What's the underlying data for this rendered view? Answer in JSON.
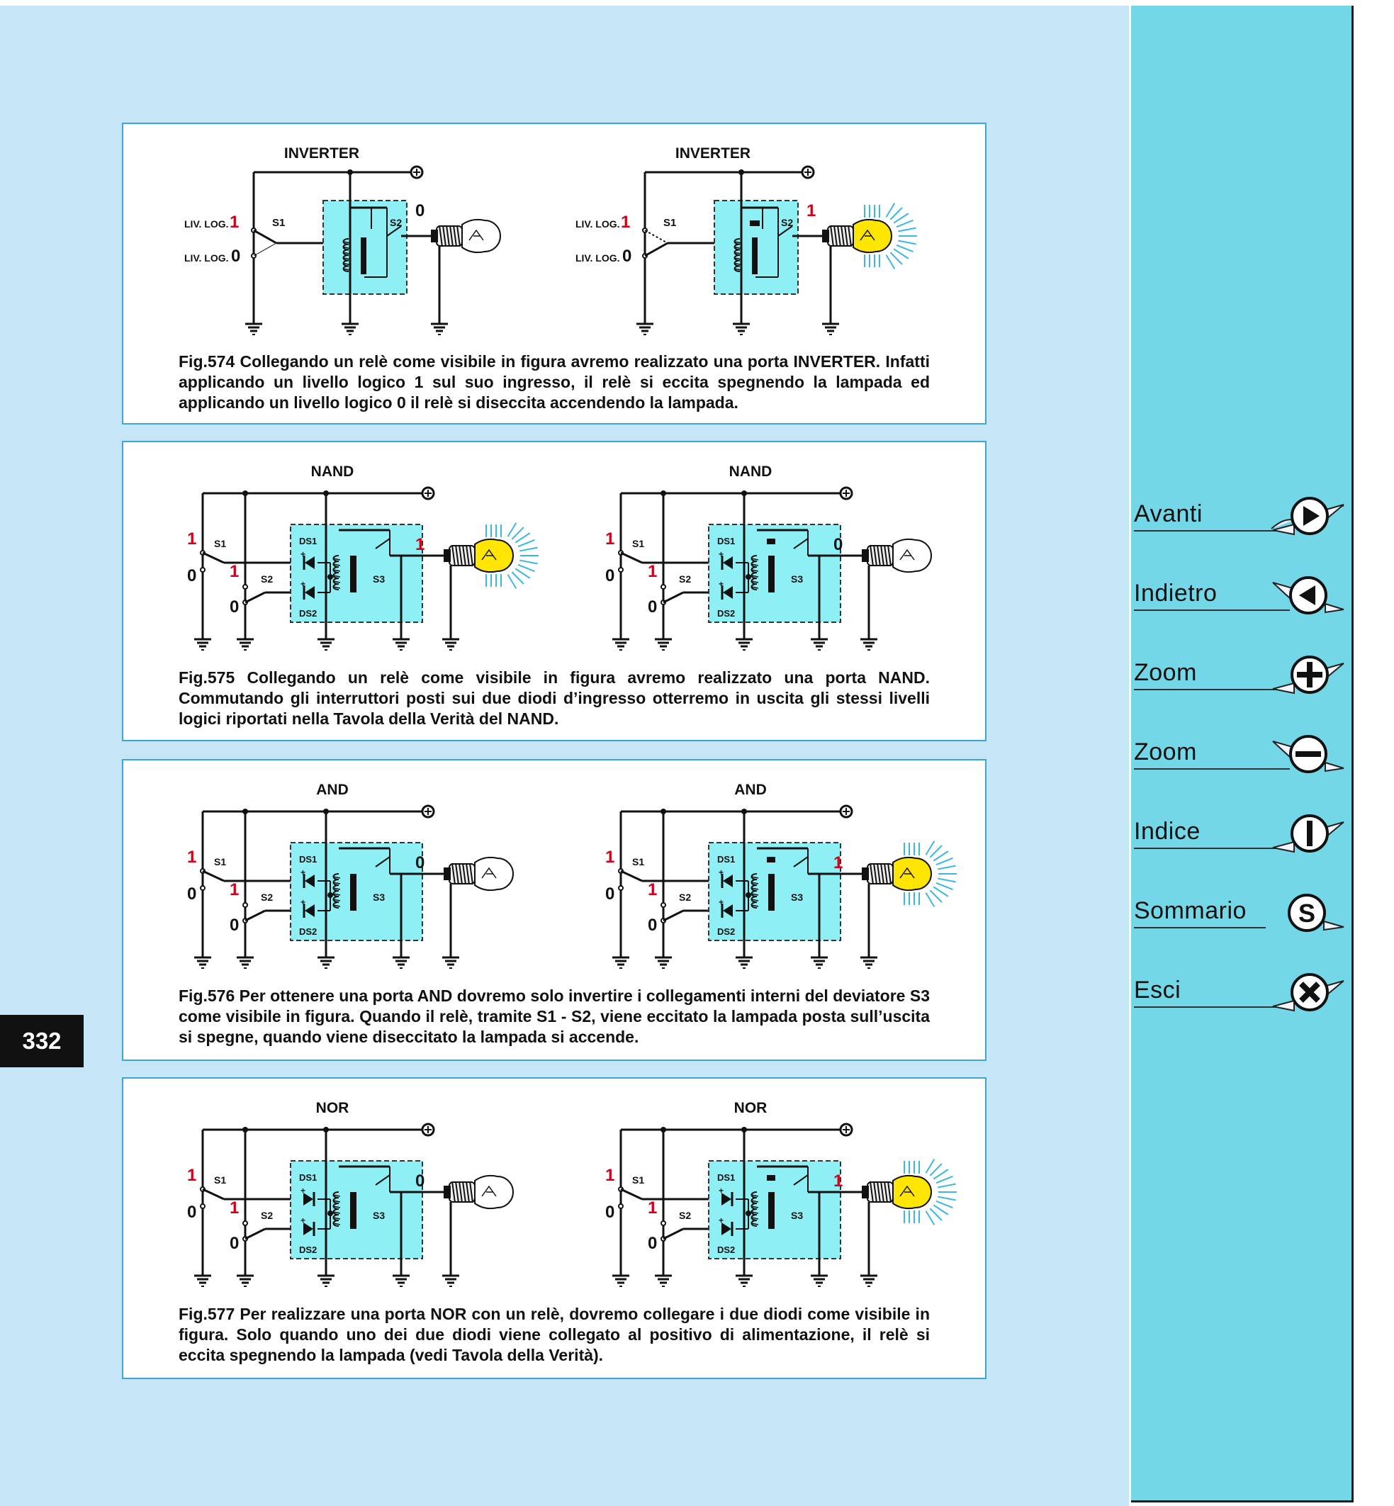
{
  "page_number": "332",
  "figures": [
    {
      "id": "fig574",
      "caption": "Fig.574 Collegando un relè come visibile in figura avremo realizzato una porta INVERTER. Infatti applicando un livello logico 1 sul suo ingresso, il relè si eccita spegnendo la lampada ed applicando un livello logico 0 il relè si diseccita accendendo la lampada.",
      "left": {
        "title": "INVERTER",
        "in_high_label": "LIV. LOG.",
        "in_high": "1",
        "in_low_label": "LIV. LOG.",
        "in_low": "0",
        "switch": "S1",
        "relay_contact": "S2",
        "output": "0"
      },
      "right": {
        "title": "INVERTER",
        "in_high_label": "LIV. LOG.",
        "in_high": "1",
        "in_low_label": "LIV. LOG.",
        "in_low": "0",
        "switch": "S1",
        "relay_contact": "S2",
        "output": "1"
      }
    },
    {
      "id": "fig575",
      "caption": "Fig.575 Collegando un relè come visibile in figura avremo realizzato una porta NAND. Commutando gli interruttori posti sui due diodi d’ingresso otterremo in uscita gli stessi livelli logici riportati nella Tavola della Verità del NAND.",
      "left": {
        "title": "NAND",
        "s1_high": "1",
        "s1_low": "0",
        "s2_high": "1",
        "s2_low": "0",
        "switch1": "S1",
        "switch2": "S2",
        "diode1": "DS1",
        "diode2": "DS2",
        "relay_contact": "S3",
        "output": "1"
      },
      "right": {
        "title": "NAND",
        "s1_high": "1",
        "s1_low": "0",
        "s2_high": "1",
        "s2_low": "0",
        "switch1": "S1",
        "switch2": "S2",
        "diode1": "DS1",
        "diode2": "DS2",
        "relay_contact": "S3",
        "output": "0"
      }
    },
    {
      "id": "fig576",
      "caption": "Fig.576 Per ottenere una porta AND dovremo solo invertire i collegamenti interni del deviatore S3 come visibile in figura. Quando il relè, tramite S1 - S2, viene eccitato la lampada posta sull’uscita si spegne, quando viene diseccitato la lampada si accende.",
      "left": {
        "title": "AND",
        "s1_high": "1",
        "s1_low": "0",
        "s2_high": "1",
        "s2_low": "0",
        "switch1": "S1",
        "switch2": "S2",
        "diode1": "DS1",
        "diode2": "DS2",
        "relay_contact": "S3",
        "output": "0"
      },
      "right": {
        "title": "AND",
        "s1_high": "1",
        "s1_low": "0",
        "s2_high": "1",
        "s2_low": "0",
        "switch1": "S1",
        "switch2": "S2",
        "diode1": "DS1",
        "diode2": "DS2",
        "relay_contact": "S3",
        "output": "1"
      }
    },
    {
      "id": "fig577",
      "caption": "Fig.577 Per realizzare una porta NOR con un relè, dovremo collegare i due diodi come visibile in figura. Solo quando uno dei due diodi viene collegato al positivo di alimentazione, il relè si eccita spegnendo la lampada (vedi Tavola della Verità).",
      "left": {
        "title": "NOR",
        "s1_high": "1",
        "s1_low": "0",
        "s2_high": "1",
        "s2_low": "0",
        "switch1": "S1",
        "switch2": "S2",
        "diode1": "DS1",
        "diode2": "DS2",
        "relay_contact": "S3",
        "output": "0"
      },
      "right": {
        "title": "NOR",
        "s1_high": "1",
        "s1_low": "0",
        "s2_high": "1",
        "s2_low": "0",
        "switch1": "S1",
        "switch2": "S2",
        "diode1": "DS1",
        "diode2": "DS2",
        "relay_contact": "S3",
        "output": "1"
      }
    }
  ],
  "nav": [
    {
      "label": "Avanti",
      "icon": "play-right-icon"
    },
    {
      "label": "Indietro",
      "icon": "play-left-icon"
    },
    {
      "label": "Zoom",
      "icon": "zoom-in-icon"
    },
    {
      "label": "Zoom",
      "icon": "zoom-out-icon"
    },
    {
      "label": "Indice",
      "icon": "index-icon"
    },
    {
      "label": "Sommario",
      "icon": "summary-icon"
    },
    {
      "label": "Esci",
      "icon": "exit-icon"
    }
  ],
  "colors": {
    "page_bg": "#c6e6f7",
    "sidebar_bg": "#73d7e8",
    "panel_border": "#3aa7d4",
    "relay_box": "#8ef0f4",
    "level_red": "#d0021b",
    "lamp_on": "#ffe600",
    "ray": "#3bb8e0"
  }
}
